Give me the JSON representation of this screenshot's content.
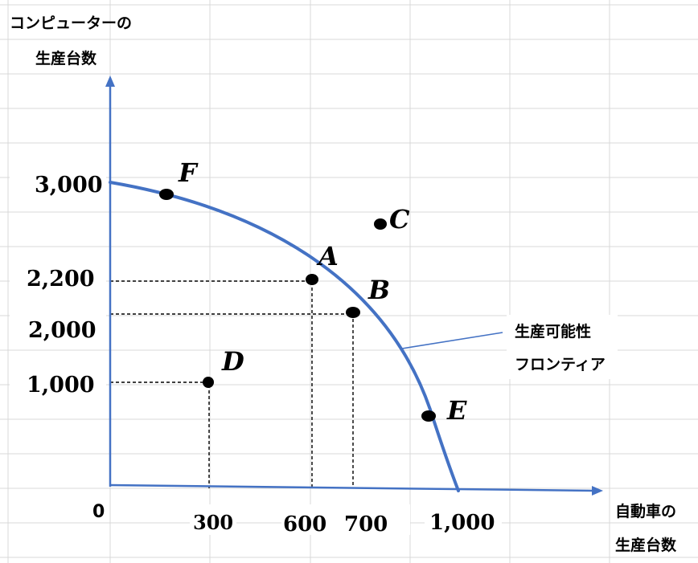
{
  "axes": {
    "y_label_line1": "コンピューターの",
    "y_label_line2": "生産台数",
    "x_label_line1": "自動車の",
    "x_label_line2": "生産台数",
    "origin": "0"
  },
  "y_ticks": [
    {
      "value": 3000,
      "label": "3,000"
    },
    {
      "value": 2200,
      "label": "2,200"
    },
    {
      "value": 2000,
      "label": "2,000"
    },
    {
      "value": 1000,
      "label": "1,000"
    }
  ],
  "x_ticks": [
    {
      "value": 300,
      "label": "300"
    },
    {
      "value": 600,
      "label": "600"
    },
    {
      "value": 700,
      "label": "700"
    },
    {
      "value": 1000,
      "label": "1,000"
    }
  ],
  "points": [
    {
      "name": "F",
      "on_frontier": true
    },
    {
      "name": "A",
      "x": 600,
      "y": 2200,
      "on_frontier": true
    },
    {
      "name": "B",
      "x": 700,
      "y": 2000,
      "on_frontier": true
    },
    {
      "name": "C",
      "on_frontier": false
    },
    {
      "name": "D",
      "x": 300,
      "y": 1000,
      "on_frontier": false
    },
    {
      "name": "E",
      "on_frontier": true
    }
  ],
  "frontier": {
    "label_line1": "生産可能性",
    "label_line2": "フロンティア",
    "y_intercept": 3000,
    "x_intercept": 1000
  },
  "colors": {
    "curve": "#4472c4",
    "grid": "#d9d9d9",
    "points": "#000000"
  }
}
